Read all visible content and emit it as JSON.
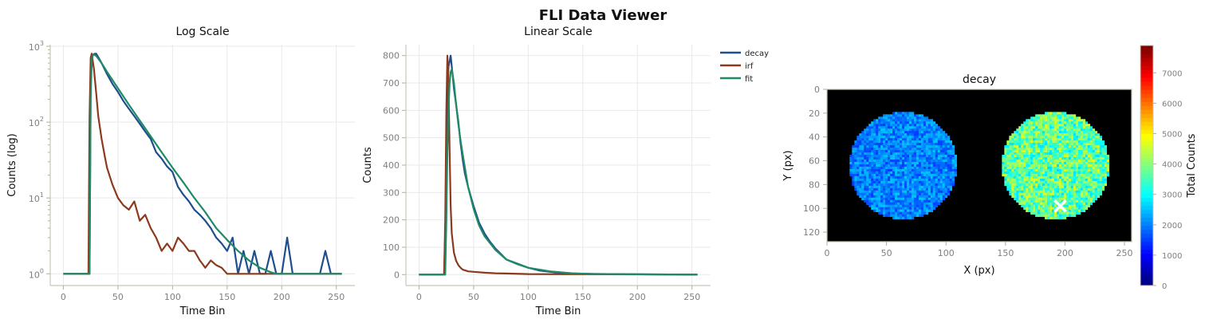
{
  "suptitle": "FLI Data Viewer",
  "colors": {
    "decay": "#1f4e8c",
    "irf": "#8b3a1e",
    "fit": "#1e8a66"
  },
  "chart_data": [
    {
      "type": "line",
      "title": "Log Scale",
      "xlabel": "Time Bin",
      "ylabel": "Counts (log)",
      "yscale": "log",
      "xlim": [
        -12,
        267
      ],
      "ylim": [
        0.7,
        1050
      ],
      "xticks": [
        "0",
        "50",
        "100",
        "150",
        "200",
        "250"
      ],
      "yticks": [
        {
          "base": "10",
          "exp": "0"
        },
        {
          "base": "10",
          "exp": "1"
        },
        {
          "base": "10",
          "exp": "2"
        },
        {
          "base": "10",
          "exp": "3"
        }
      ],
      "grid": true,
      "series": [
        {
          "name": "decay",
          "x": [
            0,
            24,
            25,
            26,
            27,
            28,
            30,
            32,
            35,
            40,
            45,
            50,
            55,
            60,
            65,
            70,
            75,
            80,
            85,
            90,
            95,
            100,
            105,
            110,
            115,
            120,
            125,
            130,
            135,
            140,
            145,
            150,
            155,
            160,
            165,
            170,
            175,
            180,
            185,
            190,
            195,
            200,
            205,
            210,
            215,
            220,
            225,
            230,
            235,
            240,
            245,
            250,
            255
          ],
          "y": [
            1,
            1,
            300,
            700,
            760,
            790,
            800,
            720,
            600,
            430,
            320,
            250,
            190,
            150,
            120,
            95,
            75,
            60,
            40,
            33,
            26,
            22,
            14,
            11,
            9,
            7,
            6,
            5,
            4,
            3,
            2.5,
            2,
            3,
            1,
            2,
            1,
            2,
            1,
            1,
            2,
            1,
            1,
            3,
            1,
            1,
            1,
            1,
            1,
            1,
            2,
            1,
            1,
            1
          ]
        },
        {
          "name": "irf",
          "x": [
            0,
            23,
            24,
            25,
            26,
            28,
            30,
            32,
            35,
            38,
            40,
            45,
            50,
            55,
            60,
            65,
            70,
            75,
            80,
            85,
            90,
            95,
            100,
            105,
            110,
            115,
            120,
            125,
            130,
            135,
            140,
            145,
            150,
            160,
            170,
            180,
            190,
            200,
            210,
            220,
            230,
            240,
            250,
            255
          ],
          "y": [
            1,
            1,
            120,
            700,
            800,
            500,
            250,
            120,
            60,
            35,
            25,
            15,
            10,
            8,
            7,
            9,
            5,
            6,
            4,
            3,
            2,
            2.5,
            2,
            3,
            2.5,
            2,
            2,
            1.5,
            1.2,
            1.5,
            1.3,
            1.2,
            1,
            1,
            1,
            1,
            1,
            1,
            1,
            1,
            1,
            1,
            1,
            1
          ]
        },
        {
          "name": "fit",
          "x": [
            0,
            24,
            25,
            26,
            27,
            28,
            30,
            35,
            40,
            50,
            60,
            70,
            80,
            90,
            100,
            110,
            120,
            130,
            140,
            150,
            160,
            170,
            180,
            190,
            195,
            200,
            210,
            220,
            230,
            240,
            250,
            255
          ],
          "y": [
            1,
            1,
            200,
            650,
            760,
            780,
            750,
            600,
            460,
            280,
            170,
            105,
            65,
            40,
            25,
            16,
            10,
            6.5,
            4,
            2.8,
            2,
            1.5,
            1.2,
            1.05,
            1,
            1,
            1,
            1,
            1,
            1,
            1,
            1
          ]
        }
      ]
    },
    {
      "type": "line",
      "title": "Linear Scale",
      "xlabel": "Time Bin",
      "ylabel": "Counts",
      "xlim": [
        -12,
        267
      ],
      "ylim": [
        -40,
        840
      ],
      "xticks": [
        0,
        50,
        100,
        150,
        200,
        250
      ],
      "yticks": [
        0,
        100,
        200,
        300,
        400,
        500,
        600,
        700,
        800
      ],
      "grid": true,
      "legend": "outside upper right",
      "series": [
        {
          "name": "decay",
          "x": [
            0,
            23,
            25,
            26,
            27,
            28,
            29,
            30,
            31,
            32,
            34,
            36,
            38,
            40,
            42,
            45,
            50,
            55,
            60,
            65,
            70,
            75,
            80,
            90,
            100,
            110,
            120,
            130,
            140,
            150,
            175,
            200,
            255
          ],
          "y": [
            0,
            0,
            300,
            650,
            760,
            780,
            800,
            760,
            720,
            680,
            620,
            560,
            480,
            420,
            370,
            320,
            250,
            190,
            150,
            120,
            95,
            75,
            55,
            40,
            25,
            15,
            10,
            6,
            4,
            3,
            2,
            1,
            0
          ]
        },
        {
          "name": "irf",
          "x": [
            0,
            23,
            24,
            25,
            26,
            27,
            28,
            29,
            30,
            32,
            34,
            36,
            38,
            40,
            45,
            50,
            60,
            70,
            80,
            100,
            255
          ],
          "y": [
            0,
            0,
            200,
            600,
            800,
            700,
            450,
            250,
            150,
            80,
            50,
            35,
            25,
            18,
            12,
            10,
            7,
            5,
            4,
            2,
            0
          ]
        },
        {
          "name": "fit",
          "x": [
            0,
            24,
            25,
            26,
            27,
            28,
            29,
            30,
            32,
            34,
            36,
            38,
            40,
            45,
            50,
            55,
            60,
            70,
            80,
            90,
            100,
            120,
            140,
            160,
            200,
            255
          ],
          "y": [
            0,
            0,
            200,
            450,
            600,
            700,
            740,
            750,
            700,
            620,
            550,
            490,
            440,
            320,
            240,
            180,
            140,
            90,
            55,
            38,
            25,
            12,
            5,
            2,
            1,
            0
          ]
        }
      ]
    },
    {
      "type": "heatmap",
      "title": "decay",
      "xlabel": "X (px)",
      "ylabel": "Y (px)",
      "colormap": "jet",
      "xlim": [
        0,
        256
      ],
      "ylim": [
        128,
        0
      ],
      "xticks": [
        0,
        50,
        100,
        150,
        200,
        250
      ],
      "yticks": [
        0,
        20,
        40,
        60,
        80,
        100,
        120
      ],
      "colorbar": {
        "label": "Total Counts",
        "range": [
          0,
          7900
        ],
        "ticks": [
          0,
          1000,
          2000,
          3000,
          4000,
          5000,
          6000,
          7000
        ]
      },
      "regions": [
        {
          "shape": "circle",
          "cx": 64,
          "cy": 64,
          "r": 45,
          "mean": 2000
        },
        {
          "shape": "circle",
          "cx": 192,
          "cy": 64,
          "r": 45,
          "mean": 3700
        }
      ],
      "background": 0,
      "marker": {
        "symbol": "x",
        "x": 196,
        "y": 98
      }
    }
  ]
}
